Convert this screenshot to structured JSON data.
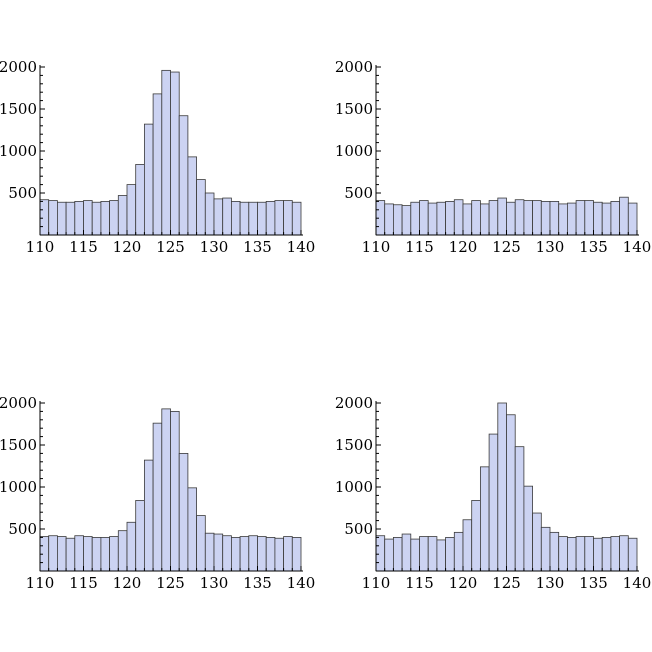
{
  "chart_data": [
    {
      "type": "bar",
      "title": "",
      "xlabel": "",
      "ylabel": "",
      "bin_width": 1,
      "x_start": 110,
      "xlim": [
        110,
        140
      ],
      "ylim": [
        0,
        2000
      ],
      "x_ticks": [
        "110",
        "115",
        "120",
        "125",
        "130",
        "135",
        "140"
      ],
      "y_ticks": [
        "500",
        "1000",
        "1500",
        "2000"
      ],
      "values": [
        420,
        410,
        390,
        390,
        400,
        410,
        390,
        400,
        410,
        470,
        600,
        840,
        1320,
        1680,
        1960,
        1940,
        1420,
        930,
        660,
        500,
        430,
        440,
        400,
        390,
        390,
        390,
        400,
        410,
        410,
        390
      ]
    },
    {
      "type": "bar",
      "title": "",
      "xlabel": "",
      "ylabel": "",
      "bin_width": 1,
      "x_start": 110,
      "xlim": [
        110,
        140
      ],
      "ylim": [
        0,
        2000
      ],
      "x_ticks": [
        "110",
        "115",
        "120",
        "125",
        "130",
        "135",
        "140"
      ],
      "y_ticks": [
        "500",
        "1000",
        "1500",
        "2000"
      ],
      "values": [
        410,
        370,
        360,
        350,
        390,
        410,
        380,
        390,
        400,
        420,
        370,
        410,
        370,
        410,
        440,
        390,
        420,
        410,
        410,
        400,
        400,
        370,
        380,
        410,
        410,
        390,
        380,
        400,
        450,
        380
      ]
    },
    {
      "type": "bar",
      "title": "",
      "xlabel": "",
      "ylabel": "",
      "bin_width": 1,
      "x_start": 110,
      "xlim": [
        110,
        140
      ],
      "ylim": [
        0,
        2000
      ],
      "x_ticks": [
        "110",
        "115",
        "120",
        "125",
        "130",
        "135",
        "140"
      ],
      "y_ticks": [
        "500",
        "1000",
        "1500",
        "2000"
      ],
      "values": [
        410,
        420,
        410,
        390,
        420,
        410,
        400,
        400,
        410,
        480,
        580,
        840,
        1320,
        1760,
        1930,
        1900,
        1400,
        990,
        660,
        450,
        440,
        420,
        400,
        410,
        420,
        410,
        400,
        390,
        410,
        400
      ]
    },
    {
      "type": "bar",
      "title": "",
      "xlabel": "",
      "ylabel": "",
      "bin_width": 1,
      "x_start": 110,
      "xlim": [
        110,
        140
      ],
      "ylim": [
        0,
        2000
      ],
      "x_ticks": [
        "110",
        "115",
        "120",
        "125",
        "130",
        "135",
        "140"
      ],
      "y_ticks": [
        "500",
        "1000",
        "1500",
        "2000"
      ],
      "values": [
        420,
        380,
        400,
        440,
        380,
        410,
        410,
        370,
        400,
        460,
        610,
        840,
        1240,
        1630,
        2000,
        1860,
        1480,
        1010,
        690,
        520,
        460,
        410,
        400,
        410,
        410,
        390,
        400,
        410,
        420,
        390
      ]
    }
  ]
}
